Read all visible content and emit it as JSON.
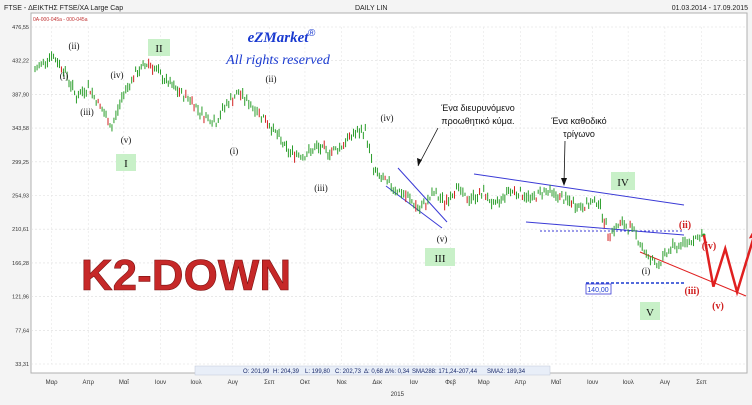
{
  "header": {
    "instrument": "FTSE - ΔΕΙΚΤΗΣ FTSE/XA Large Cap",
    "sub": "0A-000-045a - 000-045a",
    "mode": "DAILY LIN",
    "date_range": "01.03.2014 - 17.09.2015"
  },
  "watermark": {
    "line1": "eZMarket",
    "mark": "®",
    "line2": "All rights reserved"
  },
  "headline": "K2-DOWN",
  "notes": {
    "expanding": [
      "Ένα διευρυνόμενο",
      "προωθητικό κύμα."
    ],
    "triangle": [
      "Ένα καθοδικό",
      "τρίγωνο"
    ]
  },
  "support_label": "140,00",
  "ohlc_bar": {
    "o": "O: 201,99",
    "h": "H: 204,39",
    "l": "L: 199,80",
    "c": "C: 202,73",
    "d": "Δ: 0,68",
    "dp": "Δ%: 0,34",
    "sma288": "SMA288: 171,24-207,44",
    "sma2": "SMA2: 189,34"
  },
  "wave_labels": {
    "major_ii": "II",
    "major_i": "I",
    "major_iii": "III",
    "major_iv": "IV",
    "major_v": "V",
    "ii_a": "(ii)",
    "i_a": "(i)",
    "iv_a": "(iv)",
    "iii_a": "(iii)",
    "v_a": "(v)",
    "ii_b": "(ii)",
    "i_b": "(i)",
    "iii_b": "(iii)",
    "iv_b": "(iv)",
    "v_b": "(v)",
    "i_c": "(i)",
    "ii_c": "(ii)",
    "iii_c": "(iii)",
    "iv_c": "(iv)",
    "v_c": "(v)"
  },
  "colors": {
    "price": "#2a9d2a",
    "down_bar": "#d22020",
    "trend": "#3a3ad6",
    "projection": "#e02020",
    "headline": "#c62828",
    "watermark": "#1a3ad0",
    "wave_box": "#c8f0c8"
  },
  "chart_data": {
    "type": "line",
    "title": "FTSE - ΔΕΙΚΤΗΣ FTSE/XA Large Cap",
    "xlabel": "",
    "ylabel": "",
    "ylim": [
      33.31,
      476.55
    ],
    "x_tick_labels": [
      "Μαρ",
      "Απρ",
      "Μαΐ",
      "Ιουν",
      "Ιουλ",
      "Αυγ",
      "Σεπ",
      "Οκτ",
      "Νοε",
      "Δεκ",
      "Ιαν",
      "Φεβ",
      "Μαρ",
      "Απρ",
      "Μαΐ",
      "Ιουν",
      "Ιουλ",
      "Αυγ",
      "Σεπ"
    ],
    "x_year_label": "2015",
    "y_tick_labels": [
      "476,55",
      "432,22",
      "387,90",
      "343,58",
      "299,25",
      "254,93",
      "210,61",
      "166,28",
      "121,96",
      "77,64",
      "33,31"
    ],
    "y_ticks": [
      476.55,
      432.22,
      387.9,
      343.58,
      299.25,
      254.93,
      210.61,
      166.28,
      121.96,
      77.64,
      33.31
    ],
    "grid": true,
    "series": [
      {
        "name": "FTSE",
        "x": [
          "2014-03-01",
          "2014-03-15",
          "2014-03-25",
          "2014-04-05",
          "2014-04-15",
          "2014-04-25",
          "2014-05-05",
          "2014-05-15",
          "2014-05-25",
          "2014-06-05",
          "2014-06-20",
          "2014-07-01",
          "2014-07-10",
          "2014-07-20",
          "2014-08-01",
          "2014-08-10",
          "2014-08-20",
          "2014-09-01",
          "2014-09-10",
          "2014-09-20",
          "2014-10-01",
          "2014-10-15",
          "2014-10-25",
          "2014-11-05",
          "2014-11-15",
          "2014-11-25",
          "2014-12-05",
          "2014-12-12",
          "2014-12-20",
          "2015-01-01",
          "2015-01-10",
          "2015-01-20",
          "2015-02-01",
          "2015-02-10",
          "2015-02-20",
          "2015-03-01",
          "2015-03-15",
          "2015-03-25",
          "2015-04-05",
          "2015-04-15",
          "2015-04-25",
          "2015-05-05",
          "2015-05-15",
          "2015-05-25",
          "2015-06-05",
          "2015-06-20",
          "2015-06-28",
          "2015-07-10",
          "2015-07-20",
          "2015-08-01",
          "2015-08-10",
          "2015-08-20",
          "2015-09-01",
          "2015-09-10",
          "2015-09-17"
        ],
        "values": [
          420,
          440,
          422,
          385,
          398,
          372,
          345,
          390,
          415,
          430,
          405,
          390,
          382,
          362,
          352,
          376,
          390,
          372,
          358,
          338,
          312,
          308,
          318,
          312,
          320,
          336,
          340,
          288,
          275,
          262,
          252,
          236,
          258,
          246,
          265,
          250,
          258,
          240,
          262,
          258,
          250,
          262,
          255,
          248,
          240,
          248,
          205,
          218,
          208,
          172,
          165,
          185,
          192,
          200,
          203
        ]
      }
    ],
    "projection": {
      "x": [
        "2015-09-17",
        "2015-09-25",
        "2015-10-05",
        "2015-10-15",
        "2015-10-30"
      ],
      "values": [
        203,
        135,
        185,
        128,
        205
      ],
      "labels": [
        "(iii)",
        "(iv)",
        "(v)"
      ]
    },
    "support_level": 140.0,
    "dotted_level": 210.61
  }
}
